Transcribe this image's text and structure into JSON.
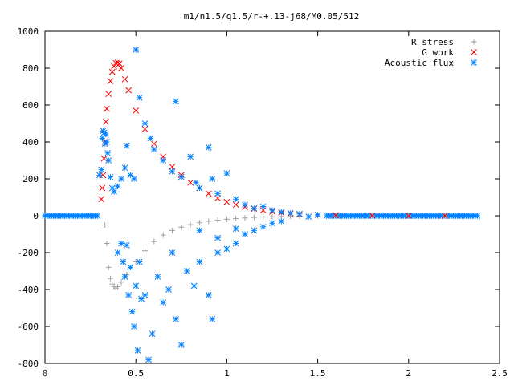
{
  "chart_data": {
    "type": "scatter",
    "title": "m1/n1.5/q1.5/r-+.13-j68/M0.05/512",
    "xlabel": "",
    "ylabel": "",
    "xlim": [
      0,
      2.5
    ],
    "ylim": [
      -800,
      1000
    ],
    "x_ticks": [
      "0",
      "0.5",
      "1",
      "1.5",
      "2",
      "2.5"
    ],
    "y_ticks": [
      "1000",
      "800",
      "600",
      "400",
      "200",
      "0",
      "-200",
      "-400",
      "-600",
      "-800"
    ],
    "grid": false,
    "legend_position": "top-right",
    "series": [
      {
        "name": "R stress",
        "color": "#a0a0a0",
        "marker": "plus",
        "points": [
          [
            0.33,
            -50
          ],
          [
            0.34,
            -150
          ],
          [
            0.35,
            -280
          ],
          [
            0.36,
            -340
          ],
          [
            0.37,
            -370
          ],
          [
            0.38,
            -385
          ],
          [
            0.39,
            -392
          ],
          [
            0.4,
            -385
          ],
          [
            0.42,
            -360
          ],
          [
            0.45,
            -320
          ],
          [
            0.5,
            -250
          ],
          [
            0.55,
            -190
          ],
          [
            0.6,
            -140
          ],
          [
            0.65,
            -105
          ],
          [
            0.7,
            -80
          ],
          [
            0.75,
            -62
          ],
          [
            0.8,
            -48
          ],
          [
            0.85,
            -38
          ],
          [
            0.9,
            -30
          ],
          [
            0.95,
            -24
          ],
          [
            1.0,
            -19
          ],
          [
            1.05,
            -15
          ],
          [
            1.1,
            -12
          ],
          [
            1.15,
            -9
          ],
          [
            1.2,
            -7
          ],
          [
            1.25,
            -5
          ],
          [
            1.3,
            -4
          ],
          [
            1.35,
            -3
          ],
          [
            1.4,
            -2
          ],
          [
            1.5,
            -1
          ],
          [
            1.6,
            0
          ],
          [
            1.8,
            0
          ],
          [
            2.0,
            0
          ],
          [
            2.2,
            0
          ]
        ]
      },
      {
        "name": "G work",
        "color": "#ff0000",
        "marker": "cross",
        "points": [
          [
            0.31,
            90
          ],
          [
            0.315,
            150
          ],
          [
            0.32,
            220
          ],
          [
            0.325,
            310
          ],
          [
            0.33,
            400
          ],
          [
            0.335,
            510
          ],
          [
            0.34,
            580
          ],
          [
            0.35,
            660
          ],
          [
            0.36,
            730
          ],
          [
            0.37,
            780
          ],
          [
            0.38,
            810
          ],
          [
            0.39,
            828
          ],
          [
            0.4,
            830
          ],
          [
            0.41,
            825
          ],
          [
            0.42,
            800
          ],
          [
            0.44,
            740
          ],
          [
            0.46,
            680
          ],
          [
            0.5,
            570
          ],
          [
            0.55,
            470
          ],
          [
            0.6,
            390
          ],
          [
            0.65,
            320
          ],
          [
            0.7,
            265
          ],
          [
            0.75,
            220
          ],
          [
            0.8,
            180
          ],
          [
            0.85,
            150
          ],
          [
            0.9,
            120
          ],
          [
            0.95,
            95
          ],
          [
            1.0,
            75
          ],
          [
            1.05,
            60
          ],
          [
            1.1,
            48
          ],
          [
            1.15,
            38
          ],
          [
            1.2,
            30
          ],
          [
            1.25,
            22
          ],
          [
            1.3,
            16
          ],
          [
            1.35,
            12
          ],
          [
            1.4,
            8
          ],
          [
            1.5,
            5
          ],
          [
            1.6,
            3
          ],
          [
            1.8,
            1
          ],
          [
            2.0,
            0
          ],
          [
            2.2,
            0
          ]
        ]
      },
      {
        "name": "Acoustic flux",
        "color": "#0080ff",
        "marker": "star",
        "points": [
          [
            0.3,
            220
          ],
          [
            0.31,
            250
          ],
          [
            0.315,
            420
          ],
          [
            0.32,
            460
          ],
          [
            0.325,
            450
          ],
          [
            0.33,
            390
          ],
          [
            0.335,
            440
          ],
          [
            0.34,
            400
          ],
          [
            0.345,
            340
          ],
          [
            0.35,
            300
          ],
          [
            0.36,
            210
          ],
          [
            0.37,
            150
          ],
          [
            0.38,
            130
          ],
          [
            0.4,
            160
          ],
          [
            0.42,
            200
          ],
          [
            0.44,
            260
          ],
          [
            0.45,
            380
          ],
          [
            0.47,
            220
          ],
          [
            0.49,
            200
          ],
          [
            0.4,
            -200
          ],
          [
            0.42,
            -150
          ],
          [
            0.43,
            -250
          ],
          [
            0.44,
            -330
          ],
          [
            0.45,
            -160
          ],
          [
            0.46,
            -430
          ],
          [
            0.47,
            -280
          ],
          [
            0.48,
            -520
          ],
          [
            0.49,
            -600
          ],
          [
            0.5,
            -380
          ],
          [
            0.51,
            -730
          ],
          [
            0.52,
            -250
          ],
          [
            0.53,
            -450
          ],
          [
            0.55,
            -430
          ],
          [
            0.57,
            -780
          ],
          [
            0.59,
            -640
          ],
          [
            0.5,
            900
          ],
          [
            0.52,
            640
          ],
          [
            0.55,
            500
          ],
          [
            0.58,
            420
          ],
          [
            0.6,
            360
          ],
          [
            0.65,
            300
          ],
          [
            0.7,
            240
          ],
          [
            0.72,
            620
          ],
          [
            0.75,
            210
          ],
          [
            0.8,
            320
          ],
          [
            0.83,
            180
          ],
          [
            0.85,
            150
          ],
          [
            0.9,
            370
          ],
          [
            0.92,
            200
          ],
          [
            0.95,
            120
          ],
          [
            1.0,
            230
          ],
          [
            1.05,
            90
          ],
          [
            1.1,
            60
          ],
          [
            0.62,
            -330
          ],
          [
            0.65,
            -470
          ],
          [
            0.68,
            -400
          ],
          [
            0.7,
            -200
          ],
          [
            0.72,
            -560
          ],
          [
            0.75,
            -700
          ],
          [
            0.78,
            -300
          ],
          [
            0.82,
            -380
          ],
          [
            0.85,
            -250
          ],
          [
            0.9,
            -430
          ],
          [
            0.92,
            -560
          ],
          [
            0.95,
            -200
          ],
          [
            1.0,
            -180
          ],
          [
            1.05,
            -150
          ],
          [
            1.1,
            -100
          ],
          [
            1.15,
            -80
          ],
          [
            1.2,
            -60
          ],
          [
            1.25,
            -40
          ],
          [
            1.3,
            -30
          ],
          [
            0.85,
            -80
          ],
          [
            0.95,
            -120
          ],
          [
            1.05,
            -70
          ],
          [
            1.15,
            40
          ],
          [
            1.2,
            50
          ],
          [
            1.25,
            30
          ],
          [
            1.3,
            20
          ],
          [
            1.35,
            15
          ],
          [
            1.4,
            10
          ],
          [
            1.45,
            -5
          ],
          [
            1.5,
            5
          ]
        ]
      }
    ]
  }
}
